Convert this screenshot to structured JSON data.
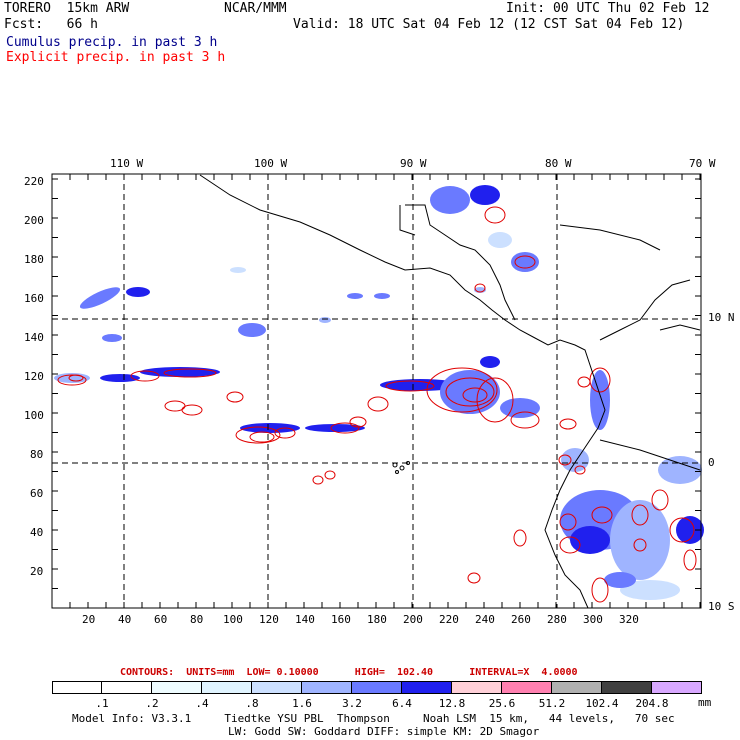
{
  "header": {
    "model": "TORERO  15km ARW",
    "fcst": "Fcst:   66 h",
    "org": "NCAR/MMM",
    "init": "Init: 00 UTC Thu 02 Feb 12",
    "valid": "Valid: 18 UTC Sat 04 Feb 12 (12 CST Sat 04 Feb 12)",
    "line_cumulus": "Cumulus precip. in past 3 h",
    "line_explicit": "Explicit precip. in past 3 h",
    "color_cumulus": "#00008b",
    "color_explicit": "#ff0000"
  },
  "map": {
    "lon_labels": [
      "110 W",
      "100 W",
      "90 W",
      "80 W",
      "70 W"
    ],
    "lat_labels": [
      "10 N",
      "0",
      "10 S"
    ],
    "x_ticks": [
      "20",
      "40",
      "60",
      "80",
      "100",
      "120",
      "140",
      "160",
      "180",
      "200",
      "220",
      "240",
      "260",
      "280",
      "300",
      "320"
    ],
    "y_ticks": [
      "20",
      "40",
      "60",
      "80",
      "100",
      "120",
      "140",
      "160",
      "180",
      "200",
      "220"
    ]
  },
  "contour_info": {
    "text": "CONTOURS:  UNITS=mm  LOW= 0.10000      HIGH=  102.40      INTERVAL=X  4.0000",
    "color": "#cc0000"
  },
  "legend": {
    "labels": [
      ".1",
      ".2",
      ".4",
      ".8",
      "1.6",
      "3.2",
      "6.4",
      "12.8",
      "25.6",
      "51.2",
      "102.4",
      "204.8"
    ],
    "unit": "mm",
    "colors": [
      "#ffffff",
      "#ffffff",
      "#eefcff",
      "#e0f4ff",
      "#cce0ff",
      "#9fb4ff",
      "#6a7aff",
      "#2020ee",
      "#ffd0d8",
      "#ff80b0",
      "#b0b0b0",
      "#404040",
      "#d8a8ff"
    ]
  },
  "footer": {
    "line1": "Model Info: V3.3.1     Tiedtke YSU PBL  Thompson     Noah LSM  15 km,   44 levels,   70 sec",
    "line2": "LW: Godd SW: Goddard DIFF: simple KM: 2D Smagor"
  }
}
